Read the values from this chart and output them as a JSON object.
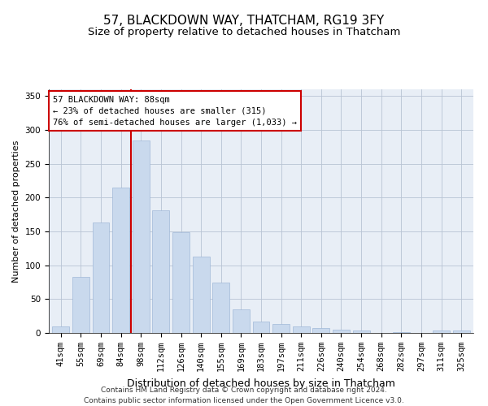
{
  "title": "57, BLACKDOWN WAY, THATCHAM, RG19 3FY",
  "subtitle": "Size of property relative to detached houses in Thatcham",
  "xlabel": "Distribution of detached houses by size in Thatcham",
  "ylabel": "Number of detached properties",
  "categories": [
    "41sqm",
    "55sqm",
    "69sqm",
    "84sqm",
    "98sqm",
    "112sqm",
    "126sqm",
    "140sqm",
    "155sqm",
    "169sqm",
    "183sqm",
    "197sqm",
    "211sqm",
    "226sqm",
    "240sqm",
    "254sqm",
    "268sqm",
    "282sqm",
    "297sqm",
    "311sqm",
    "325sqm"
  ],
  "values": [
    10,
    83,
    163,
    215,
    285,
    181,
    149,
    113,
    75,
    35,
    17,
    13,
    10,
    7,
    5,
    4,
    0,
    1,
    0,
    4,
    4
  ],
  "bar_color": "#c9d9ed",
  "bar_edge_color": "#a0b8d8",
  "vline_color": "#cc0000",
  "annotation_text": "57 BLACKDOWN WAY: 88sqm\n← 23% of detached houses are smaller (315)\n76% of semi-detached houses are larger (1,033) →",
  "annotation_box_color": "#ffffff",
  "annotation_box_edge": "#cc0000",
  "ylim": [
    0,
    360
  ],
  "yticks": [
    0,
    50,
    100,
    150,
    200,
    250,
    300,
    350
  ],
  "grid_color": "#b8c4d4",
  "background_color": "#e8eef6",
  "footer": "Contains HM Land Registry data © Crown copyright and database right 2024.\nContains public sector information licensed under the Open Government Licence v3.0.",
  "title_fontsize": 11,
  "subtitle_fontsize": 9.5,
  "xlabel_fontsize": 9,
  "ylabel_fontsize": 8,
  "tick_fontsize": 7.5,
  "footer_fontsize": 6.5,
  "vline_pos": 3.5
}
